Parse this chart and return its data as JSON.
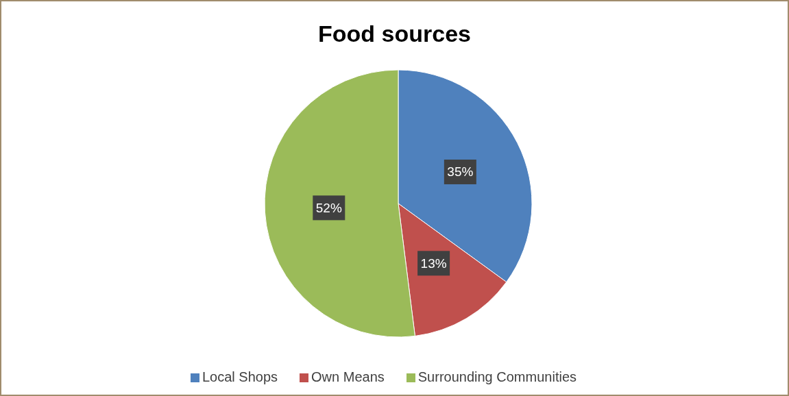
{
  "chart_data": {
    "type": "pie",
    "title": "Food sources",
    "categories": [
      "Local Shops",
      "Own Means",
      "Surrounding Communities"
    ],
    "values": [
      35,
      13,
      52
    ],
    "colors": [
      "#4f81bd",
      "#c0504d",
      "#9bbb59"
    ],
    "value_labels": [
      "35%",
      "13%",
      "52%"
    ],
    "legend": "bottom"
  }
}
